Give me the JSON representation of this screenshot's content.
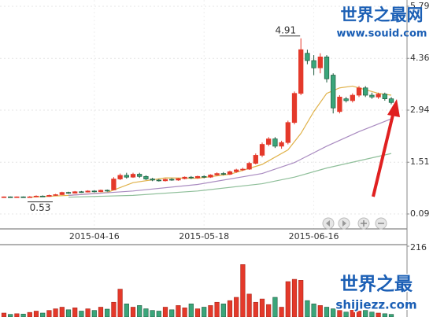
{
  "chart_data": [
    {
      "type": "candlestick",
      "categories": [
        null,
        null,
        null,
        null,
        null,
        null,
        null,
        null,
        null,
        null,
        null,
        null,
        null,
        null,
        "2015-04-16",
        null,
        null,
        null,
        null,
        null,
        null,
        null,
        null,
        null,
        null,
        null,
        null,
        null,
        null,
        null,
        null,
        "2015-05-18",
        null,
        null,
        null,
        null,
        null,
        null,
        null,
        null,
        null,
        null,
        null,
        null,
        null,
        null,
        null,
        null,
        "2015-06-16",
        null,
        null,
        null,
        null,
        null,
        null,
        null,
        null,
        null,
        null,
        null,
        null
      ],
      "open": [
        0.55,
        0.56,
        0.55,
        0.56,
        0.55,
        0.56,
        0.58,
        0.57,
        0.6,
        0.62,
        0.68,
        0.66,
        0.7,
        0.69,
        0.72,
        0.7,
        0.74,
        0.75,
        1.05,
        1.15,
        1.1,
        1.18,
        1.12,
        1.05,
        1.02,
        1.0,
        1.04,
        1.02,
        1.06,
        1.1,
        1.08,
        1.12,
        1.1,
        1.16,
        1.2,
        1.18,
        1.25,
        1.3,
        1.32,
        1.48,
        1.7,
        2.0,
        2.15,
        1.95,
        2.05,
        2.6,
        3.4,
        4.5,
        4.3,
        4.1,
        4.4,
        3.9,
        2.9,
        3.25,
        3.2,
        3.35,
        3.55,
        3.35,
        3.3,
        3.38,
        3.25
      ],
      "high": [
        0.57,
        0.57,
        0.57,
        0.57,
        0.58,
        0.6,
        0.6,
        0.62,
        0.64,
        0.7,
        0.7,
        0.72,
        0.72,
        0.74,
        0.74,
        0.76,
        0.76,
        1.1,
        1.2,
        1.22,
        1.22,
        1.22,
        1.15,
        1.08,
        1.05,
        1.06,
        1.07,
        1.08,
        1.12,
        1.13,
        1.14,
        1.15,
        1.18,
        1.23,
        1.24,
        1.28,
        1.33,
        1.36,
        1.52,
        1.75,
        2.05,
        2.2,
        2.2,
        2.1,
        2.65,
        3.45,
        4.91,
        4.6,
        4.45,
        4.5,
        4.45,
        3.95,
        3.35,
        3.3,
        3.4,
        3.6,
        3.6,
        3.42,
        3.42,
        3.42,
        3.3
      ],
      "low": [
        0.53,
        0.54,
        0.54,
        0.54,
        0.54,
        0.55,
        0.56,
        0.56,
        0.59,
        0.61,
        0.64,
        0.65,
        0.67,
        0.68,
        0.68,
        0.69,
        0.7,
        0.74,
        1.02,
        1.06,
        1.08,
        1.08,
        1.02,
        0.99,
        0.98,
        0.98,
        1.0,
        1.0,
        1.04,
        1.05,
        1.06,
        1.07,
        1.08,
        1.14,
        1.15,
        1.16,
        1.22,
        1.27,
        1.3,
        1.45,
        1.65,
        1.95,
        1.9,
        1.88,
        2.0,
        2.55,
        3.35,
        4.2,
        3.9,
        3.95,
        3.7,
        2.85,
        2.85,
        3.15,
        3.15,
        3.3,
        3.3,
        3.25,
        3.25,
        3.2,
        3.1
      ],
      "close": [
        0.56,
        0.55,
        0.56,
        0.55,
        0.56,
        0.58,
        0.57,
        0.6,
        0.62,
        0.68,
        0.66,
        0.7,
        0.69,
        0.72,
        0.7,
        0.74,
        0.72,
        1.05,
        1.15,
        1.1,
        1.18,
        1.12,
        1.05,
        1.02,
        1.0,
        1.04,
        1.02,
        1.06,
        1.1,
        1.08,
        1.12,
        1.1,
        1.16,
        1.2,
        1.18,
        1.25,
        1.3,
        1.32,
        1.48,
        1.7,
        2.0,
        2.15,
        1.95,
        2.05,
        2.6,
        3.4,
        4.6,
        4.3,
        4.1,
        4.4,
        3.8,
        3.0,
        3.3,
        3.2,
        3.35,
        3.55,
        3.35,
        3.3,
        3.38,
        3.25,
        3.15
      ],
      "up_color": "#e4392a",
      "down_color": "#3aa57a",
      "annotations": [
        "4.91",
        "0.53"
      ],
      "lines": [
        {
          "color": "#e0b24a",
          "x": [
            4,
            10,
            16,
            20,
            25,
            30,
            35,
            40,
            44,
            46,
            48,
            50,
            52,
            54,
            56,
            58,
            60
          ],
          "values": [
            0.55,
            0.6,
            0.68,
            0.95,
            1.08,
            1.07,
            1.18,
            1.45,
            1.85,
            2.3,
            2.9,
            3.4,
            3.55,
            3.6,
            3.5,
            3.4,
            3.35
          ]
        },
        {
          "color": "#a98bc0",
          "x": [
            10,
            20,
            30,
            40,
            45,
            50,
            55,
            60
          ],
          "values": [
            0.6,
            0.72,
            0.9,
            1.2,
            1.5,
            1.95,
            2.35,
            2.7
          ]
        },
        {
          "color": "#8fbf9a",
          "x": [
            10,
            20,
            30,
            40,
            45,
            50,
            55,
            60
          ],
          "values": [
            0.55,
            0.6,
            0.72,
            0.92,
            1.1,
            1.35,
            1.55,
            1.75
          ]
        }
      ],
      "ylim": [
        0.09,
        5.79
      ],
      "yticks": [
        5.79,
        4.36,
        2.94,
        1.51,
        0.09
      ],
      "grid": true
    },
    {
      "type": "volume",
      "values": [
        12,
        8,
        10,
        9,
        14,
        18,
        12,
        20,
        25,
        30,
        22,
        28,
        18,
        25,
        20,
        30,
        24,
        45,
        85,
        40,
        30,
        35,
        25,
        20,
        18,
        30,
        22,
        35,
        28,
        40,
        25,
        30,
        35,
        45,
        40,
        50,
        60,
        160,
        70,
        45,
        55,
        38,
        60,
        30,
        108,
        115,
        112,
        50,
        40,
        35,
        30,
        25,
        20,
        15,
        22,
        18,
        20,
        15,
        12,
        10,
        8
      ],
      "ylim": [
        0,
        216
      ],
      "yticks": [
        216
      ]
    }
  ],
  "watermarks": {
    "top_title": "世界之最网",
    "top_url": "www.souid.com",
    "bottom_title": "世界之最",
    "bottom_url": "shijiezz.com"
  }
}
